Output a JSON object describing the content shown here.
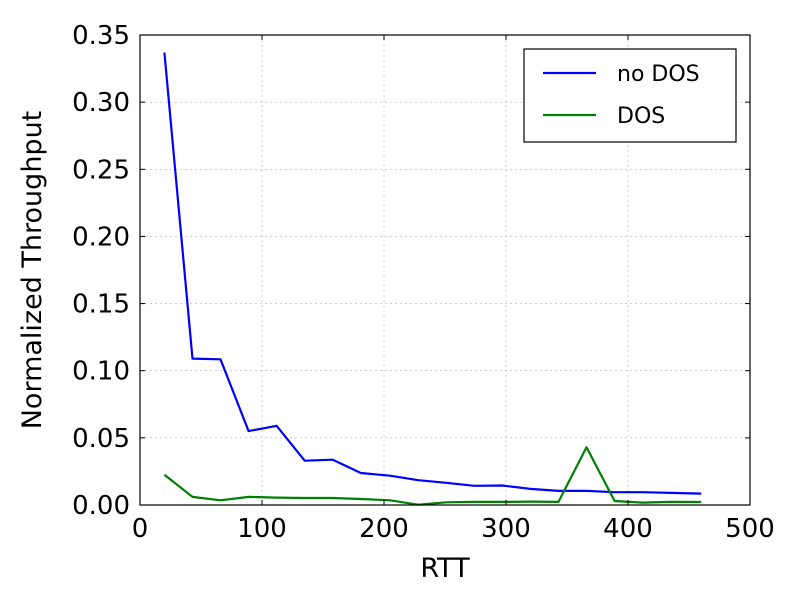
{
  "chart_data": {
    "type": "line",
    "title": "",
    "xlabel": "RTT",
    "ylabel": "Normalized Throughput",
    "xlim": [
      0,
      500
    ],
    "ylim": [
      0,
      0.35
    ],
    "xticks": [
      0,
      100,
      200,
      300,
      400,
      500
    ],
    "xtick_labels": [
      "0",
      "100",
      "200",
      "300",
      "400",
      "500"
    ],
    "yticks": [
      0,
      0.05,
      0.1,
      0.15,
      0.2,
      0.25,
      0.3,
      0.35
    ],
    "ytick_labels": [
      "0.00",
      "0.05",
      "0.10",
      "0.15",
      "0.20",
      "0.25",
      "0.30",
      "0.35"
    ],
    "grid": true,
    "legend_position": "top-right",
    "series": [
      {
        "name": "no DOS",
        "color": "#0000ff",
        "x": [
          20,
          43,
          66,
          89,
          112,
          135,
          158,
          181,
          205,
          228,
          251,
          274,
          297,
          320,
          343,
          366,
          389,
          412,
          435,
          460
        ],
        "y": [
          0.337,
          0.109,
          0.1085,
          0.055,
          0.059,
          0.033,
          0.0337,
          0.0238,
          0.0218,
          0.0185,
          0.0165,
          0.0143,
          0.0145,
          0.012,
          0.0105,
          0.0105,
          0.0095,
          0.0095,
          0.009,
          0.0085
        ]
      },
      {
        "name": "DOS",
        "color": "#008000",
        "x": [
          20,
          43,
          66,
          89,
          112,
          135,
          158,
          181,
          205,
          228,
          251,
          274,
          297,
          320,
          343,
          366,
          389,
          412,
          435,
          460
        ],
        "y": [
          0.0225,
          0.006,
          0.0035,
          0.006,
          0.0055,
          0.0052,
          0.0052,
          0.0045,
          0.0035,
          0.0002,
          0.002,
          0.0023,
          0.0023,
          0.0025,
          0.0023,
          0.043,
          0.003,
          0.0018,
          0.0023,
          0.0022
        ]
      }
    ]
  }
}
